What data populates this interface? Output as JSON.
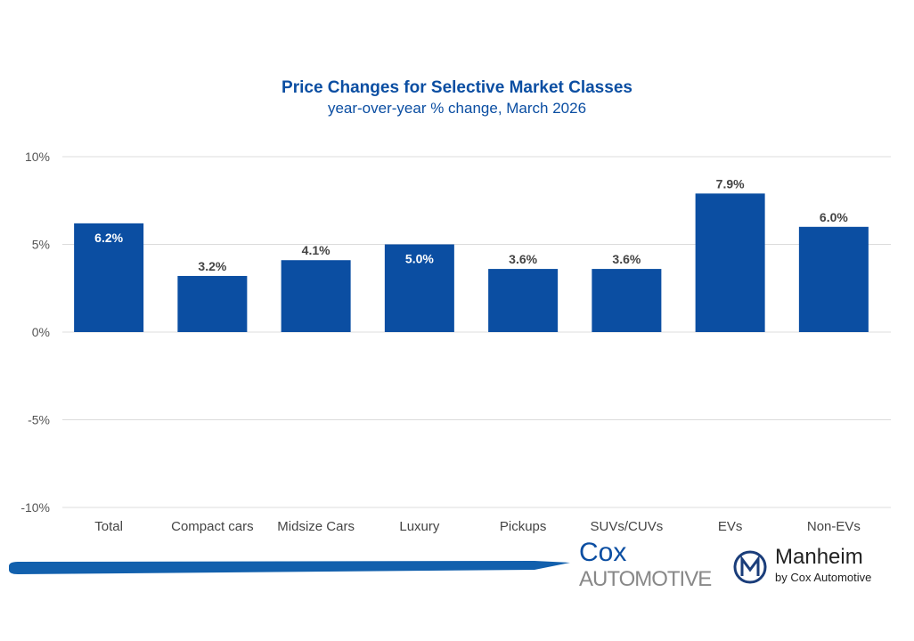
{
  "chart_data": {
    "type": "bar",
    "title": "Price Changes for Selective Market Classes",
    "subtitle": "year-over-year % change, March 2026",
    "categories": [
      "Total",
      "Compact cars",
      "Midsize Cars",
      "Luxury",
      "Pickups",
      "SUVs/CUVs",
      "EVs",
      "Non-EVs"
    ],
    "values": [
      6.2,
      3.2,
      4.1,
      5.0,
      3.6,
      3.6,
      7.9,
      6.0
    ],
    "data_labels": [
      "6.2%",
      "3.2%",
      "4.1%",
      "5.0%",
      "3.6%",
      "3.6%",
      "7.9%",
      "6.0%"
    ],
    "label_inside": [
      true,
      false,
      false,
      true,
      false,
      false,
      false,
      false
    ],
    "ylim": [
      -10,
      10
    ],
    "yticks": [
      10,
      5,
      0,
      -5,
      -10
    ],
    "ytick_labels": [
      "10%",
      "5%",
      "0%",
      "-5%",
      "-10%"
    ],
    "grid": true,
    "bar_color": "#0b4ea2"
  },
  "logos": {
    "cox_line1": "Cox",
    "cox_line2": "Automotive",
    "manheim": "Manheim",
    "manheim_sub": "by Cox Automotive"
  }
}
